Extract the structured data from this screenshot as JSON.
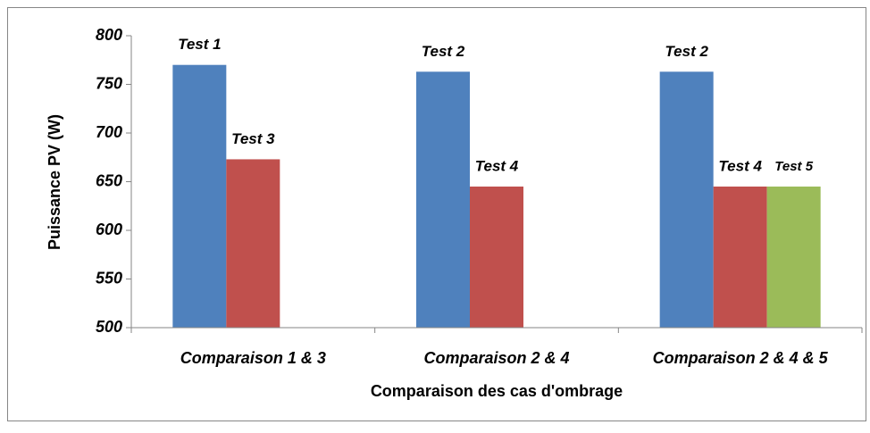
{
  "chart_data": {
    "type": "bar",
    "categories": [
      "Comparaison 1 & 3",
      "Comparaison 2 & 4",
      "Comparaison 2 & 4 & 5"
    ],
    "series": [
      {
        "color": "#4f81bd",
        "values": [
          770,
          763,
          763
        ],
        "labels": [
          "Test 1",
          "Test 2",
          "Test 2"
        ]
      },
      {
        "color": "#c0504d",
        "values": [
          673,
          645,
          645
        ],
        "labels": [
          "Test 3",
          "Test 4",
          "Test 4"
        ]
      },
      {
        "color": "#9bbb59",
        "values": [
          null,
          null,
          645
        ],
        "labels": [
          null,
          null,
          "Test 5"
        ]
      }
    ],
    "ylim": [
      500,
      800
    ],
    "yticks": [
      500,
      550,
      600,
      650,
      700,
      750,
      800
    ],
    "ylabel": "Puissance PV (W)",
    "xlabel": "Comparaison des cas d'ombrage",
    "grid": false
  }
}
